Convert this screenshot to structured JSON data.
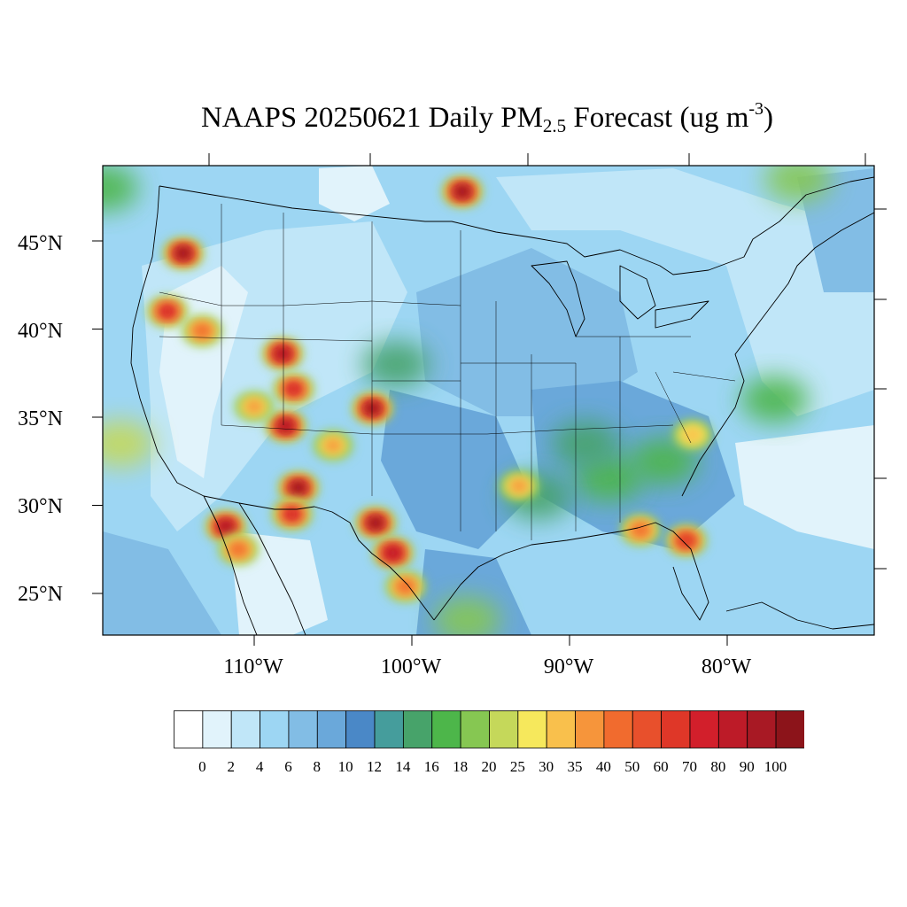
{
  "title": {
    "prefix": "NAAPS 20250621 Daily PM",
    "subscript": "2.5",
    "middle": " Forecast (ug m",
    "superscript": "-3",
    "suffix": ")"
  },
  "map": {
    "region": "Contiguous United States",
    "projection": "Mercator",
    "lon_range": [
      -120,
      -71
    ],
    "lat_range": [
      22.5,
      49
    ],
    "lat_labels": [
      "45°N",
      "40°N",
      "35°N",
      "30°N",
      "25°N"
    ],
    "lon_labels": [
      "110°W",
      "100°W",
      "90°W",
      "80°W"
    ],
    "hotspots": [
      {
        "lon": -114.5,
        "lat": 44.3,
        "value": 100
      },
      {
        "lon": -115.5,
        "lat": 41.0,
        "value": 70
      },
      {
        "lon": -113.3,
        "lat": 39.9,
        "value": 40
      },
      {
        "lon": -108.2,
        "lat": 38.6,
        "value": 90
      },
      {
        "lon": -107.5,
        "lat": 36.6,
        "value": 70
      },
      {
        "lon": -108.0,
        "lat": 34.5,
        "value": 90
      },
      {
        "lon": -107.2,
        "lat": 31.0,
        "value": 100
      },
      {
        "lon": -107.6,
        "lat": 29.5,
        "value": 70
      },
      {
        "lon": -111.8,
        "lat": 28.8,
        "value": 90
      },
      {
        "lon": -111.0,
        "lat": 27.5,
        "value": 40
      },
      {
        "lon": -102.3,
        "lat": 29.0,
        "value": 100
      },
      {
        "lon": -101.2,
        "lat": 27.3,
        "value": 80
      },
      {
        "lon": -100.4,
        "lat": 25.4,
        "value": 40
      },
      {
        "lon": -102.5,
        "lat": 35.5,
        "value": 100
      },
      {
        "lon": -96.8,
        "lat": 47.8,
        "value": 100
      },
      {
        "lon": -93.2,
        "lat": 31.1,
        "value": 35
      },
      {
        "lon": -85.5,
        "lat": 28.6,
        "value": 40
      },
      {
        "lon": -82.6,
        "lat": 28.0,
        "value": 60
      },
      {
        "lon": -82.2,
        "lat": 34.0,
        "value": 30
      },
      {
        "lon": -110.0,
        "lat": 35.6,
        "value": 35
      },
      {
        "lon": -105.0,
        "lat": 33.4,
        "value": 35
      }
    ],
    "moderate_areas": [
      {
        "lon": -87.5,
        "lat": 31.5,
        "value": 16
      },
      {
        "lon": -89.0,
        "lat": 33.5,
        "value": 14
      },
      {
        "lon": -84.0,
        "lat": 32.5,
        "value": 16
      },
      {
        "lon": -92.0,
        "lat": 30.5,
        "value": 14
      },
      {
        "lon": -96.5,
        "lat": 23.5,
        "value": 18
      },
      {
        "lon": -118.5,
        "lat": 33.5,
        "value": 20
      },
      {
        "lon": -101.0,
        "lat": 38.0,
        "value": 14
      },
      {
        "lon": -75.5,
        "lat": 48.5,
        "value": 18
      },
      {
        "lon": -119.5,
        "lat": 48.0,
        "value": 16
      },
      {
        "lon": -77.0,
        "lat": 36.0,
        "value": 16
      }
    ]
  },
  "colorbar": {
    "colors": [
      "#ffffff",
      "#e1f3fb",
      "#c0e6f8",
      "#9dd6f3",
      "#82bde5",
      "#6aa8da",
      "#4a88c7",
      "#459d9c",
      "#47a36a",
      "#4db64a",
      "#86c752",
      "#c5d85a",
      "#f6e85c",
      "#f9c04c",
      "#f6953b",
      "#f16b2e",
      "#e8502c",
      "#df3728",
      "#d21f2b",
      "#bd1b28",
      "#a81924",
      "#8c141a"
    ],
    "labels": [
      "0",
      "2",
      "4",
      "6",
      "8",
      "10",
      "12",
      "14",
      "16",
      "18",
      "20",
      "25",
      "30",
      "35",
      "40",
      "50",
      "60",
      "70",
      "80",
      "90",
      "100"
    ]
  }
}
